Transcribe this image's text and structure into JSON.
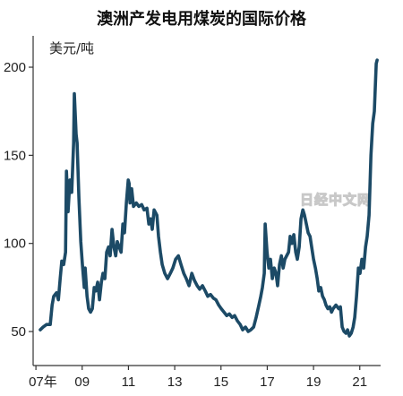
{
  "watermark": "日经中文网",
  "chart_data": {
    "type": "line",
    "title": "澳洲产发电用煤炭的国际价格",
    "ylabel": "美元/吨",
    "xlabel": "",
    "grid": false,
    "legend": "none",
    "xlim": [
      2006.88,
      2021.9
    ],
    "ylim": [
      30.7,
      217.8
    ],
    "y_ticks": [
      50,
      100,
      150,
      200
    ],
    "x_ticks": [
      {
        "value": 2007,
        "label": "07年"
      },
      {
        "value": 2009,
        "label": "09"
      },
      {
        "value": 2011,
        "label": "11"
      },
      {
        "value": 2013,
        "label": "13"
      },
      {
        "value": 2015,
        "label": "15"
      },
      {
        "value": 2017,
        "label": "17"
      },
      {
        "value": 2019,
        "label": "19"
      },
      {
        "value": 2021,
        "label": "21"
      }
    ],
    "series": [
      {
        "color": "#1c4a66",
        "points": [
          [
            2007.19,
            51
          ],
          [
            2007.31,
            52.5
          ],
          [
            2007.46,
            54
          ],
          [
            2007.62,
            54
          ],
          [
            2007.7,
            65
          ],
          [
            2007.77,
            70
          ],
          [
            2007.89,
            72
          ],
          [
            2007.97,
            68
          ],
          [
            2008.05,
            80
          ],
          [
            2008.12,
            90
          ],
          [
            2008.2,
            88
          ],
          [
            2008.28,
            95
          ],
          [
            2008.32,
            141
          ],
          [
            2008.39,
            118
          ],
          [
            2008.47,
            136
          ],
          [
            2008.55,
            129
          ],
          [
            2008.63,
            157
          ],
          [
            2008.66,
            185
          ],
          [
            2008.74,
            162
          ],
          [
            2008.78,
            157
          ],
          [
            2008.86,
            126
          ],
          [
            2008.94,
            101
          ],
          [
            2009.01,
            88
          ],
          [
            2009.09,
            75
          ],
          [
            2009.13,
            86
          ],
          [
            2009.21,
            70
          ],
          [
            2009.28,
            63
          ],
          [
            2009.36,
            61
          ],
          [
            2009.44,
            63
          ],
          [
            2009.52,
            75
          ],
          [
            2009.59,
            73
          ],
          [
            2009.67,
            78
          ],
          [
            2009.75,
            68
          ],
          [
            2009.83,
            78
          ],
          [
            2009.9,
            83
          ],
          [
            2009.98,
            80
          ],
          [
            2010.06,
            95
          ],
          [
            2010.14,
            98
          ],
          [
            2010.21,
            93
          ],
          [
            2010.29,
            108
          ],
          [
            2010.37,
            98
          ],
          [
            2010.45,
            93
          ],
          [
            2010.52,
            101
          ],
          [
            2010.6,
            98
          ],
          [
            2010.68,
            95
          ],
          [
            2010.76,
            111
          ],
          [
            2010.83,
            106
          ],
          [
            2010.91,
            123
          ],
          [
            2010.99,
            136
          ],
          [
            2011.03,
            134
          ],
          [
            2011.07,
            123
          ],
          [
            2011.14,
            131
          ],
          [
            2011.22,
            121
          ],
          [
            2011.34,
            123
          ],
          [
            2011.45,
            121
          ],
          [
            2011.57,
            122
          ],
          [
            2011.68,
            119
          ],
          [
            2011.8,
            120
          ],
          [
            2011.88,
            111
          ],
          [
            2011.96,
            114
          ],
          [
            2012.03,
            108
          ],
          [
            2012.11,
            119
          ],
          [
            2012.23,
            116
          ],
          [
            2012.3,
            104
          ],
          [
            2012.38,
            95
          ],
          [
            2012.46,
            88
          ],
          [
            2012.57,
            83
          ],
          [
            2012.69,
            80
          ],
          [
            2012.81,
            83
          ],
          [
            2012.92,
            86
          ],
          [
            2013.04,
            91
          ],
          [
            2013.16,
            93
          ],
          [
            2013.27,
            88
          ],
          [
            2013.39,
            83
          ],
          [
            2013.5,
            80
          ],
          [
            2013.62,
            76
          ],
          [
            2013.74,
            83
          ],
          [
            2013.85,
            79
          ],
          [
            2013.97,
            76
          ],
          [
            2014.08,
            74
          ],
          [
            2014.2,
            76
          ],
          [
            2014.32,
            73
          ],
          [
            2014.43,
            70
          ],
          [
            2014.55,
            71
          ],
          [
            2014.67,
            69
          ],
          [
            2014.78,
            68
          ],
          [
            2014.9,
            65
          ],
          [
            2015.01,
            63
          ],
          [
            2015.13,
            61
          ],
          [
            2015.25,
            59
          ],
          [
            2015.36,
            60
          ],
          [
            2015.48,
            58
          ],
          [
            2015.59,
            59
          ],
          [
            2015.71,
            56
          ],
          [
            2015.83,
            54
          ],
          [
            2015.94,
            51
          ],
          [
            2016.06,
            52.5
          ],
          [
            2016.18,
            50
          ],
          [
            2016.29,
            51
          ],
          [
            2016.41,
            52.5
          ],
          [
            2016.52,
            58
          ],
          [
            2016.64,
            65
          ],
          [
            2016.72,
            70
          ],
          [
            2016.79,
            75
          ],
          [
            2016.87,
            83
          ],
          [
            2016.91,
            111
          ],
          [
            2016.99,
            95
          ],
          [
            2017.07,
            86
          ],
          [
            2017.14,
            91
          ],
          [
            2017.22,
            80
          ],
          [
            2017.3,
            86
          ],
          [
            2017.38,
            83
          ],
          [
            2017.45,
            76
          ],
          [
            2017.53,
            88
          ],
          [
            2017.61,
            93
          ],
          [
            2017.69,
            86
          ],
          [
            2017.76,
            91
          ],
          [
            2017.84,
            93
          ],
          [
            2017.92,
            95
          ],
          [
            2017.99,
            104
          ],
          [
            2018.07,
            100
          ],
          [
            2018.15,
            105
          ],
          [
            2018.23,
            95
          ],
          [
            2018.3,
            91
          ],
          [
            2018.38,
            98
          ],
          [
            2018.46,
            114
          ],
          [
            2018.54,
            119
          ],
          [
            2018.61,
            116
          ],
          [
            2018.69,
            111
          ],
          [
            2018.77,
            106
          ],
          [
            2018.85,
            104
          ],
          [
            2018.92,
            98
          ],
          [
            2019.0,
            91
          ],
          [
            2019.08,
            86
          ],
          [
            2019.16,
            80
          ],
          [
            2019.23,
            73
          ],
          [
            2019.31,
            75
          ],
          [
            2019.39,
            70
          ],
          [
            2019.47,
            68
          ],
          [
            2019.54,
            65
          ],
          [
            2019.62,
            63
          ],
          [
            2019.7,
            64
          ],
          [
            2019.78,
            61
          ],
          [
            2019.85,
            63
          ],
          [
            2019.97,
            65
          ],
          [
            2020.09,
            63
          ],
          [
            2020.16,
            64
          ],
          [
            2020.24,
            52.5
          ],
          [
            2020.32,
            50
          ],
          [
            2020.4,
            49
          ],
          [
            2020.47,
            51
          ],
          [
            2020.55,
            47.5
          ],
          [
            2020.63,
            49
          ],
          [
            2020.71,
            52.5
          ],
          [
            2020.78,
            58
          ],
          [
            2020.86,
            70
          ],
          [
            2020.94,
            86
          ],
          [
            2021.01,
            83
          ],
          [
            2021.09,
            91
          ],
          [
            2021.17,
            86
          ],
          [
            2021.25,
            98
          ],
          [
            2021.32,
            104
          ],
          [
            2021.4,
            116
          ],
          [
            2021.48,
            150
          ],
          [
            2021.56,
            168
          ],
          [
            2021.63,
            175
          ],
          [
            2021.71,
            202
          ],
          [
            2021.75,
            204
          ]
        ]
      }
    ]
  }
}
